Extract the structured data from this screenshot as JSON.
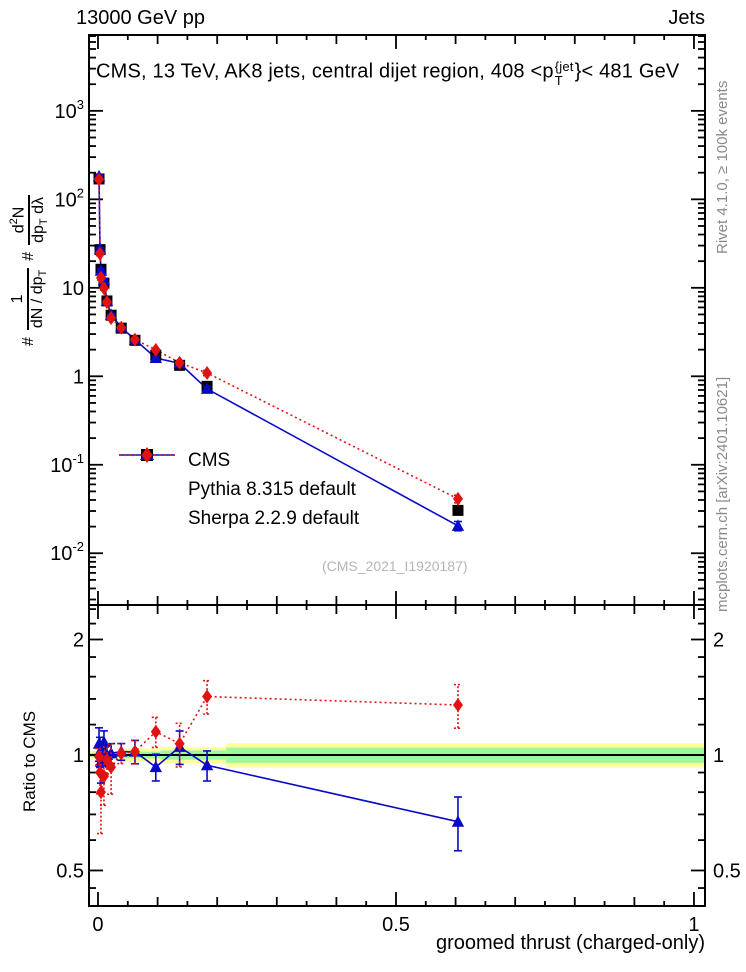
{
  "header": {
    "left": "13000 GeV pp",
    "right": "Jets"
  },
  "plot_title": {
    "pre": "CMS, 13 TeV, AK8 jets, central dijet region, 408 <p",
    "sup": "{jet",
    "sub": "T",
    "post": "}< 481 GeV"
  },
  "ylabel_main": {
    "h1": "#",
    "f1n": "1",
    "f1d_pre": "dN / dp",
    "f1d_sub": "T",
    "h2": "#",
    "f2n_pre": "d",
    "f2n_sup": "2",
    "f2n_post": "N",
    "f2d_pre": "dp",
    "f2d_sub": "T",
    "f2d_post": " dλ"
  },
  "ratio_ylabel": "Ratio to CMS",
  "xlabel": "groomed thrust (charged-only)",
  "watermark": "(CMS_2021_I1920187)",
  "side_text_top": "Rivet 4.1.0, ≥ 100k events",
  "side_text_bottom": "mcplots.cern.ch [arXiv:2401.10621]",
  "chart_data": {
    "type": "scatter+line with log axes and ratio panel",
    "title": "CMS, 13 TeV, AK8 jets, central dijet region, 408 <p_T^{jet}< 481 GeV",
    "xlabel": "groomed thrust (charged-only)",
    "ylabel": "# 1/(dN/dp_T) # d^2N/(dp_T dlambda)",
    "ratio_ylabel": "Ratio to CMS",
    "legend_position": "middle-left",
    "grid": false,
    "colors": {
      "cms": "#000000",
      "pythia": "#0909c8",
      "sherpa": "#e31212",
      "band_yellow": "#ffff9c",
      "band_green": "#9cfa9c"
    },
    "x": [
      0.0017,
      0.0034,
      0.005,
      0.01,
      0.015,
      0.022,
      0.039,
      0.062,
      0.097,
      0.137,
      0.183,
      0.604
    ],
    "series": [
      {
        "name": "CMS",
        "marker": "square",
        "line": "none",
        "color": "#000000",
        "values": [
          170,
          27,
          16.2,
          11.3,
          7.1,
          4.9,
          3.5,
          2.55,
          1.73,
          1.33,
          0.77,
          0.0305
        ],
        "rel_errors": [
          0.05,
          0.05,
          0.05,
          0.04,
          0.04,
          0.04,
          0.04,
          0.04,
          0.05,
          0.05,
          0.06,
          0.1
        ]
      },
      {
        "name": "Pythia 8.315 default",
        "marker": "triangle",
        "line": "solid",
        "color": "#0909c8",
        "values": [
          182,
          27.5,
          15.6,
          12.2,
          7.1,
          4.95,
          3.57,
          2.6,
          1.61,
          1.4,
          0.72,
          0.0204
        ],
        "rel_errors": [
          0.04,
          0.04,
          0.05,
          0.04,
          0.03,
          0.03,
          0.03,
          0.04,
          0.05,
          0.06,
          0.07,
          0.12
        ]
      },
      {
        "name": "Sherpa 2.2.9 default",
        "marker": "diamond",
        "line": "dotted",
        "color": "#e31212",
        "values": [
          168,
          24.3,
          13.0,
          9.9,
          6.9,
          4.56,
          3.54,
          2.6,
          1.99,
          1.42,
          1.09,
          0.0412
        ],
        "rel_errors": [
          0.04,
          0.05,
          0.06,
          0.05,
          0.04,
          0.05,
          0.04,
          0.04,
          0.05,
          0.06,
          0.07,
          0.1
        ]
      }
    ],
    "ratio": {
      "reference": "CMS",
      "pythia": {
        "values": [
          1.07,
          1.02,
          0.96,
          1.08,
          1.0,
          1.01,
          1.02,
          1.02,
          0.93,
          1.05,
          0.94,
          0.67
        ],
        "rel_errors": [
          0.1,
          0.09,
          0.12,
          0.07,
          0.06,
          0.06,
          0.05,
          0.07,
          0.08,
          0.1,
          0.09,
          0.16
        ]
      },
      "sherpa": {
        "values": [
          0.99,
          0.9,
          0.8,
          0.88,
          0.97,
          0.93,
          1.01,
          1.02,
          1.15,
          1.07,
          1.42,
          1.35
        ],
        "rel_errors": [
          0.05,
          0.12,
          0.22,
          0.16,
          0.08,
          0.15,
          0.06,
          0.07,
          0.09,
          0.13,
          0.1,
          0.13
        ]
      },
      "band_segments": [
        {
          "x0": -0.0151,
          "x1": 0.035,
          "yellow": 0.025,
          "green": 0.012
        },
        {
          "x0": 0.035,
          "x1": 0.105,
          "yellow": 0.04,
          "green": 0.02
        },
        {
          "x0": 0.105,
          "x1": 0.215,
          "yellow": 0.05,
          "green": 0.028
        },
        {
          "x0": 0.215,
          "x1": 1.0185,
          "yellow": 0.073,
          "green": 0.046
        }
      ]
    },
    "axes": {
      "x_range": [
        -0.0151,
        1.0185
      ],
      "y_main_range": [
        0.0026,
        7200
      ],
      "y_ratio_range": [
        0.404,
        2.46
      ],
      "x_tick_labels": [
        {
          "v": 0,
          "label": "0"
        },
        {
          "v": 0.5,
          "label": "0.5"
        },
        {
          "v": 1,
          "label": "1"
        }
      ],
      "y_ticks_main": [
        {
          "v": 1000,
          "base": "10",
          "exp": "3"
        },
        {
          "v": 100,
          "base": "10",
          "exp": "2"
        },
        {
          "v": 10,
          "base": "10",
          "exp": ""
        },
        {
          "v": 1,
          "base": "1",
          "exp": ""
        },
        {
          "v": 0.1,
          "base": "10",
          "exp": "-1"
        },
        {
          "v": 0.01,
          "base": "10",
          "exp": "-2"
        }
      ],
      "y_ticks_ratio": [
        {
          "v": 2,
          "label": "2"
        },
        {
          "v": 1,
          "label": "1"
        },
        {
          "v": 0.5,
          "label": "0.5"
        }
      ],
      "y_ratio_minor": [
        0.45,
        0.5,
        0.6,
        0.7,
        0.8,
        0.9,
        1,
        1.2,
        1.4,
        1.6,
        1.8,
        2,
        2.2,
        2.4
      ]
    }
  }
}
